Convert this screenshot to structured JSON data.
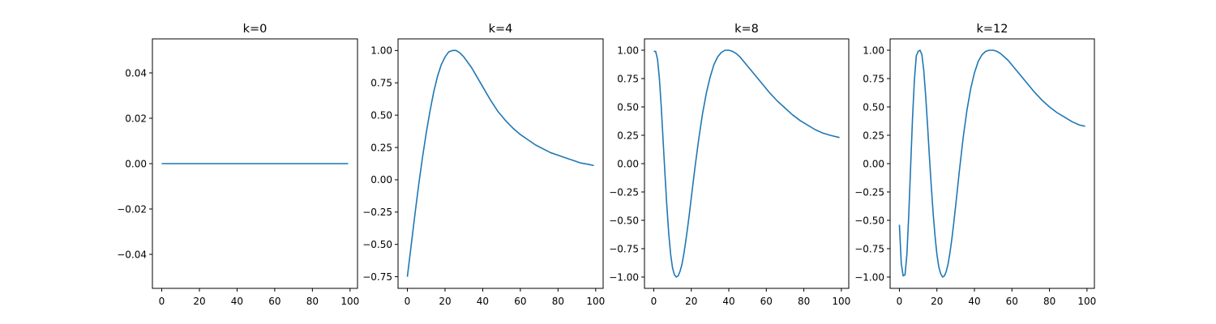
{
  "chart_data": [
    {
      "type": "line",
      "title": "k=0",
      "xlim": [
        -4.95,
        103.95
      ],
      "ylim": [
        -0.055,
        0.055
      ],
      "xticks": [
        0,
        20,
        40,
        60,
        80,
        100
      ],
      "xtick_labels": [
        "0",
        "20",
        "40",
        "60",
        "80",
        "100"
      ],
      "yticks": [
        -0.04,
        -0.02,
        0.0,
        0.02,
        0.04
      ],
      "ytick_labels": [
        "−0.04",
        "−0.02",
        "0.00",
        "0.02",
        "0.04"
      ],
      "color": "#1f77b4",
      "grid": false,
      "series": [
        {
          "x": [
            0,
            99
          ],
          "y": [
            0,
            0
          ]
        }
      ]
    },
    {
      "type": "line",
      "title": "k=4",
      "xlim": [
        -4.95,
        103.95
      ],
      "ylim": [
        -0.84,
        1.09
      ],
      "xticks": [
        0,
        20,
        40,
        60,
        80,
        100
      ],
      "xtick_labels": [
        "0",
        "20",
        "40",
        "60",
        "80",
        "100"
      ],
      "yticks": [
        -0.75,
        -0.5,
        -0.25,
        0.0,
        0.25,
        0.5,
        0.75,
        1.0
      ],
      "ytick_labels": [
        "−0.75",
        "−0.50",
        "−0.25",
        "0.00",
        "0.25",
        "0.50",
        "0.75",
        "1.00"
      ],
      "color": "#1f77b4",
      "grid": false,
      "series": [
        {
          "x": [
            0,
            2,
            4,
            6,
            8,
            10,
            12,
            14,
            16,
            18,
            20,
            22,
            24,
            26,
            28,
            30,
            32,
            34,
            36,
            38,
            40,
            44,
            48,
            52,
            56,
            60,
            64,
            68,
            72,
            76,
            80,
            84,
            88,
            92,
            96,
            99
          ],
          "y": [
            -0.75,
            -0.51,
            -0.27,
            -0.04,
            0.17,
            0.36,
            0.53,
            0.68,
            0.8,
            0.89,
            0.95,
            0.99,
            1.0,
            1.0,
            0.98,
            0.95,
            0.91,
            0.87,
            0.82,
            0.77,
            0.72,
            0.62,
            0.53,
            0.46,
            0.4,
            0.35,
            0.31,
            0.27,
            0.24,
            0.21,
            0.19,
            0.17,
            0.15,
            0.13,
            0.12,
            0.11
          ]
        }
      ]
    },
    {
      "type": "line",
      "title": "k=8",
      "xlim": [
        -4.95,
        103.95
      ],
      "ylim": [
        -1.1,
        1.1
      ],
      "xticks": [
        0,
        20,
        40,
        60,
        80,
        100
      ],
      "xtick_labels": [
        "0",
        "20",
        "40",
        "60",
        "80",
        "100"
      ],
      "yticks": [
        -1.0,
        -0.75,
        -0.5,
        -0.25,
        0.0,
        0.25,
        0.5,
        0.75,
        1.0
      ],
      "ytick_labels": [
        "−1.00",
        "−0.75",
        "−0.50",
        "−0.25",
        "0.00",
        "0.25",
        "0.50",
        "0.75",
        "1.00"
      ],
      "color": "#1f77b4",
      "grid": false,
      "series": [
        {
          "x": [
            0,
            1,
            2,
            3,
            4,
            5,
            6,
            7,
            8,
            9,
            10,
            11,
            12,
            13,
            14,
            15,
            16,
            17,
            18,
            19,
            20,
            22,
            24,
            26,
            28,
            30,
            32,
            34,
            36,
            38,
            40,
            42,
            44,
            46,
            48,
            50,
            54,
            58,
            62,
            66,
            70,
            74,
            78,
            82,
            86,
            90,
            94,
            99
          ],
          "y": [
            0.99,
            0.99,
            0.92,
            0.75,
            0.5,
            0.2,
            -0.1,
            -0.38,
            -0.62,
            -0.8,
            -0.92,
            -0.98,
            -1.0,
            -0.99,
            -0.95,
            -0.89,
            -0.8,
            -0.69,
            -0.57,
            -0.44,
            -0.3,
            -0.03,
            0.22,
            0.44,
            0.62,
            0.76,
            0.87,
            0.94,
            0.98,
            1.0,
            1.0,
            0.99,
            0.97,
            0.94,
            0.9,
            0.86,
            0.78,
            0.7,
            0.62,
            0.55,
            0.49,
            0.43,
            0.38,
            0.34,
            0.3,
            0.27,
            0.25,
            0.23
          ]
        }
      ]
    },
    {
      "type": "line",
      "title": "k=12",
      "xlim": [
        -4.95,
        103.95
      ],
      "ylim": [
        -1.1,
        1.1
      ],
      "xticks": [
        0,
        20,
        40,
        60,
        80,
        100
      ],
      "xtick_labels": [
        "0",
        "20",
        "40",
        "60",
        "80",
        "100"
      ],
      "yticks": [
        -1.0,
        -0.75,
        -0.5,
        -0.25,
        0.0,
        0.25,
        0.5,
        0.75,
        1.0
      ],
      "ytick_labels": [
        "−1.00",
        "−0.75",
        "−0.50",
        "−0.25",
        "0.00",
        "0.25",
        "0.50",
        "0.75",
        "1.00"
      ],
      "color": "#1f77b4",
      "grid": false,
      "series": [
        {
          "x": [
            0,
            1,
            2,
            3,
            4,
            5,
            6,
            7,
            8,
            9,
            10,
            11,
            12,
            13,
            14,
            15,
            16,
            17,
            18,
            19,
            20,
            21,
            22,
            23,
            24,
            25,
            26,
            27,
            28,
            29,
            30,
            32,
            34,
            36,
            38,
            40,
            42,
            44,
            46,
            48,
            50,
            52,
            54,
            56,
            58,
            60,
            64,
            68,
            72,
            76,
            80,
            84,
            88,
            92,
            96,
            99
          ],
          "y": [
            -0.54,
            -0.88,
            -0.99,
            -0.98,
            -0.8,
            -0.45,
            -0.02,
            0.4,
            0.74,
            0.95,
            0.99,
            1.0,
            0.96,
            0.82,
            0.6,
            0.34,
            0.06,
            -0.2,
            -0.44,
            -0.64,
            -0.8,
            -0.91,
            -0.97,
            -1.0,
            -0.99,
            -0.95,
            -0.88,
            -0.78,
            -0.66,
            -0.52,
            -0.37,
            -0.06,
            0.23,
            0.47,
            0.66,
            0.8,
            0.9,
            0.96,
            0.99,
            1.0,
            1.0,
            0.99,
            0.97,
            0.94,
            0.91,
            0.87,
            0.79,
            0.71,
            0.63,
            0.56,
            0.5,
            0.45,
            0.41,
            0.37,
            0.34,
            0.33
          ]
        }
      ]
    }
  ]
}
